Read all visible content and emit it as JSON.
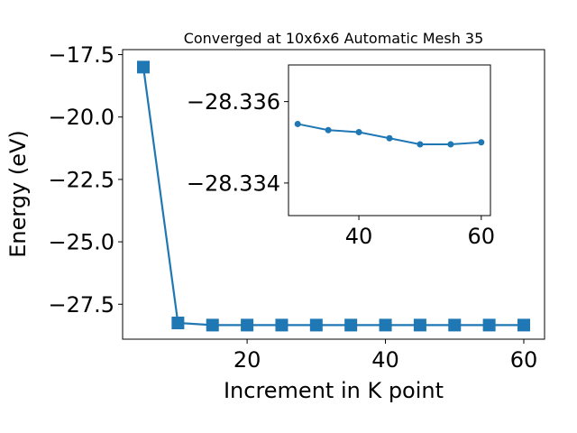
{
  "chart_data": [
    {
      "type": "line",
      "title": "Converged at 10x6x6 Automatic Mesh 35",
      "xlabel": "Increment in K point",
      "ylabel": "Energy (eV)",
      "xlim": [
        2,
        63
      ],
      "ylim": [
        -28.9,
        -17.3
      ],
      "xticks": [
        20,
        40,
        60
      ],
      "yticks": [
        -17.5,
        -20.0,
        -22.5,
        -25.0,
        -27.5
      ],
      "xtick_labels": [
        "20",
        "40",
        "60"
      ],
      "ytick_labels": [
        "−17.5",
        "−20.0",
        "−22.5",
        "−25.0",
        "−27.5"
      ],
      "marker": "square",
      "color": "#1f77b4",
      "series": [
        {
          "x": [
            5,
            10,
            15,
            20,
            25,
            30,
            35,
            40,
            45,
            50,
            55,
            60
          ],
          "values": [
            -18.0,
            -28.25,
            -28.3355,
            -28.3354,
            -28.3354,
            -28.3354,
            -28.3354,
            -28.3353,
            -28.3353,
            -28.3353,
            -28.3353,
            -28.3353
          ]
        }
      ]
    },
    {
      "type": "line",
      "title": "",
      "xlabel": "",
      "ylabel": "",
      "xlim": [
        28.5,
        61.5
      ],
      "ylim": [
        -28.3332,
        -28.3369
      ],
      "xticks": [
        40,
        60
      ],
      "yticks": [
        -28.336,
        -28.334
      ],
      "xtick_labels": [
        "40",
        "60"
      ],
      "ytick_labels": [
        "−28.336",
        "−28.334"
      ],
      "marker": "circle",
      "color": "#1f77b4",
      "series": [
        {
          "x": [
            30,
            35,
            40,
            45,
            50,
            55,
            60
          ],
          "values": [
            -28.33545,
            -28.3353,
            -28.33525,
            -28.3351,
            -28.33495,
            -28.33495,
            -28.335
          ]
        }
      ]
    }
  ]
}
